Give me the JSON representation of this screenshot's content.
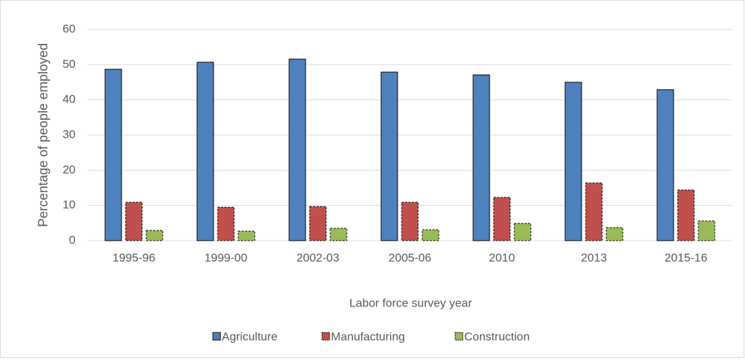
{
  "chart_data": {
    "type": "bar",
    "categories": [
      "1995-96",
      "1999-00",
      "2002-03",
      "2005-06",
      "2010",
      "2013",
      "2015-16"
    ],
    "series": [
      {
        "name": "Agriculture",
        "color": "#4f81bd",
        "values": [
          48.7,
          50.7,
          51.6,
          47.9,
          47.1,
          45.0,
          42.9
        ]
      },
      {
        "name": "Manufacturing",
        "color": "#c0504d",
        "values": [
          10.9,
          9.5,
          9.7,
          10.9,
          12.3,
          16.4,
          14.4
        ]
      },
      {
        "name": "Construction",
        "color": "#9bbb59",
        "values": [
          2.9,
          2.7,
          3.5,
          3.1,
          4.9,
          3.7,
          5.6
        ]
      }
    ],
    "x_label": "Labor force survey year",
    "y_label": "Percentage of people employed",
    "ylim": [
      0,
      60
    ],
    "yticks": [
      0,
      10,
      20,
      30,
      40,
      50,
      60
    ],
    "grid": true,
    "legend": "bottom"
  }
}
